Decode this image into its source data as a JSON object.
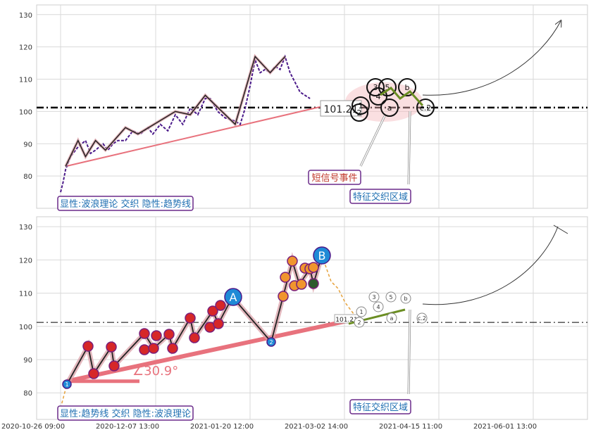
{
  "chart_data": [
    {
      "type": "line",
      "panel": "top",
      "yticks": [
        80,
        90,
        100,
        110,
        120,
        130
      ],
      "ylim": [
        70,
        133
      ],
      "grid": true,
      "reference_line": {
        "value": 101.21,
        "label": "101.21"
      },
      "price_series": [
        {
          "t": 0.0,
          "v": 75
        },
        {
          "t": 0.01,
          "v": 78
        },
        {
          "t": 0.02,
          "v": 82
        },
        {
          "t": 0.04,
          "v": 86
        },
        {
          "t": 0.07,
          "v": 89
        },
        {
          "t": 0.1,
          "v": 91
        },
        {
          "t": 0.12,
          "v": 87
        },
        {
          "t": 0.14,
          "v": 88
        },
        {
          "t": 0.17,
          "v": 90
        },
        {
          "t": 0.19,
          "v": 88
        },
        {
          "t": 0.21,
          "v": 90
        },
        {
          "t": 0.23,
          "v": 91
        },
        {
          "t": 0.26,
          "v": 91
        },
        {
          "t": 0.29,
          "v": 94
        },
        {
          "t": 0.32,
          "v": 93
        },
        {
          "t": 0.35,
          "v": 95
        },
        {
          "t": 0.37,
          "v": 93
        },
        {
          "t": 0.4,
          "v": 96
        },
        {
          "t": 0.43,
          "v": 94
        },
        {
          "t": 0.46,
          "v": 99
        },
        {
          "t": 0.49,
          "v": 96
        },
        {
          "t": 0.52,
          "v": 101
        },
        {
          "t": 0.55,
          "v": 99
        },
        {
          "t": 0.58,
          "v": 104
        },
        {
          "t": 0.6,
          "v": 104
        },
        {
          "t": 0.63,
          "v": 100
        },
        {
          "t": 0.66,
          "v": 98
        },
        {
          "t": 0.7,
          "v": 97
        },
        {
          "t": 0.72,
          "v": 96
        },
        {
          "t": 0.74,
          "v": 101
        },
        {
          "t": 0.76,
          "v": 108
        },
        {
          "t": 0.78,
          "v": 116
        },
        {
          "t": 0.8,
          "v": 112
        },
        {
          "t": 0.82,
          "v": 113
        },
        {
          "t": 0.84,
          "v": 112
        },
        {
          "t": 0.86,
          "v": 114
        },
        {
          "t": 0.88,
          "v": 113
        },
        {
          "t": 0.9,
          "v": 117
        },
        {
          "t": 0.92,
          "v": 112
        },
        {
          "t": 0.94,
          "v": 109
        },
        {
          "t": 0.96,
          "v": 106
        },
        {
          "t": 1.0,
          "v": 104
        }
      ],
      "wave_points": [
        {
          "t": 0.02,
          "v": 83
        },
        {
          "t": 0.07,
          "v": 91
        },
        {
          "t": 0.1,
          "v": 86
        },
        {
          "t": 0.14,
          "v": 91
        },
        {
          "t": 0.18,
          "v": 88
        },
        {
          "t": 0.26,
          "v": 95
        },
        {
          "t": 0.31,
          "v": 93
        },
        {
          "t": 0.46,
          "v": 100
        },
        {
          "t": 0.52,
          "v": 99
        },
        {
          "t": 0.58,
          "v": 105
        },
        {
          "t": 0.7,
          "v": 96
        },
        {
          "t": 0.78,
          "v": 117
        },
        {
          "t": 0.84,
          "v": 112
        },
        {
          "t": 0.9,
          "v": 117
        }
      ],
      "trend_line": {
        "from": {
          "t": 0.02,
          "v": 83
        },
        "to": {
          "t": 0.98,
          "v": 102
        }
      },
      "event_circles": [
        "1",
        "2",
        "3",
        "4",
        "5",
        "a",
        "b",
        "c.2"
      ],
      "annotations": [
        "短信号事件",
        "特征交织区域"
      ],
      "legend_text": "显性:波浪理论 交织 隐性:趋势线"
    },
    {
      "type": "line",
      "panel": "bottom",
      "yticks": [
        80,
        90,
        100,
        110,
        120,
        130
      ],
      "ylim": [
        72,
        133
      ],
      "grid": true,
      "reference_line": {
        "value": 101.21,
        "label": "101.21"
      },
      "xtick_labels": [
        "2020-10-26 09:00",
        "2020-12-07 13:00",
        "2021-01-20 12:00",
        "2021-03-02 14:00",
        "2021-04-15 11:00",
        "2021-06-01 13:00"
      ],
      "trend_angle_label": "∠30.9°",
      "wave_labels": [
        "1",
        "2",
        "A",
        "B"
      ],
      "event_circles": [
        "1",
        "2",
        "3",
        "4",
        "5",
        "a",
        "b",
        "c.2"
      ],
      "annotations": [
        "特征交织区域"
      ],
      "legend_text": "显性:趋势线 交织 隐性:波浪理论"
    }
  ]
}
